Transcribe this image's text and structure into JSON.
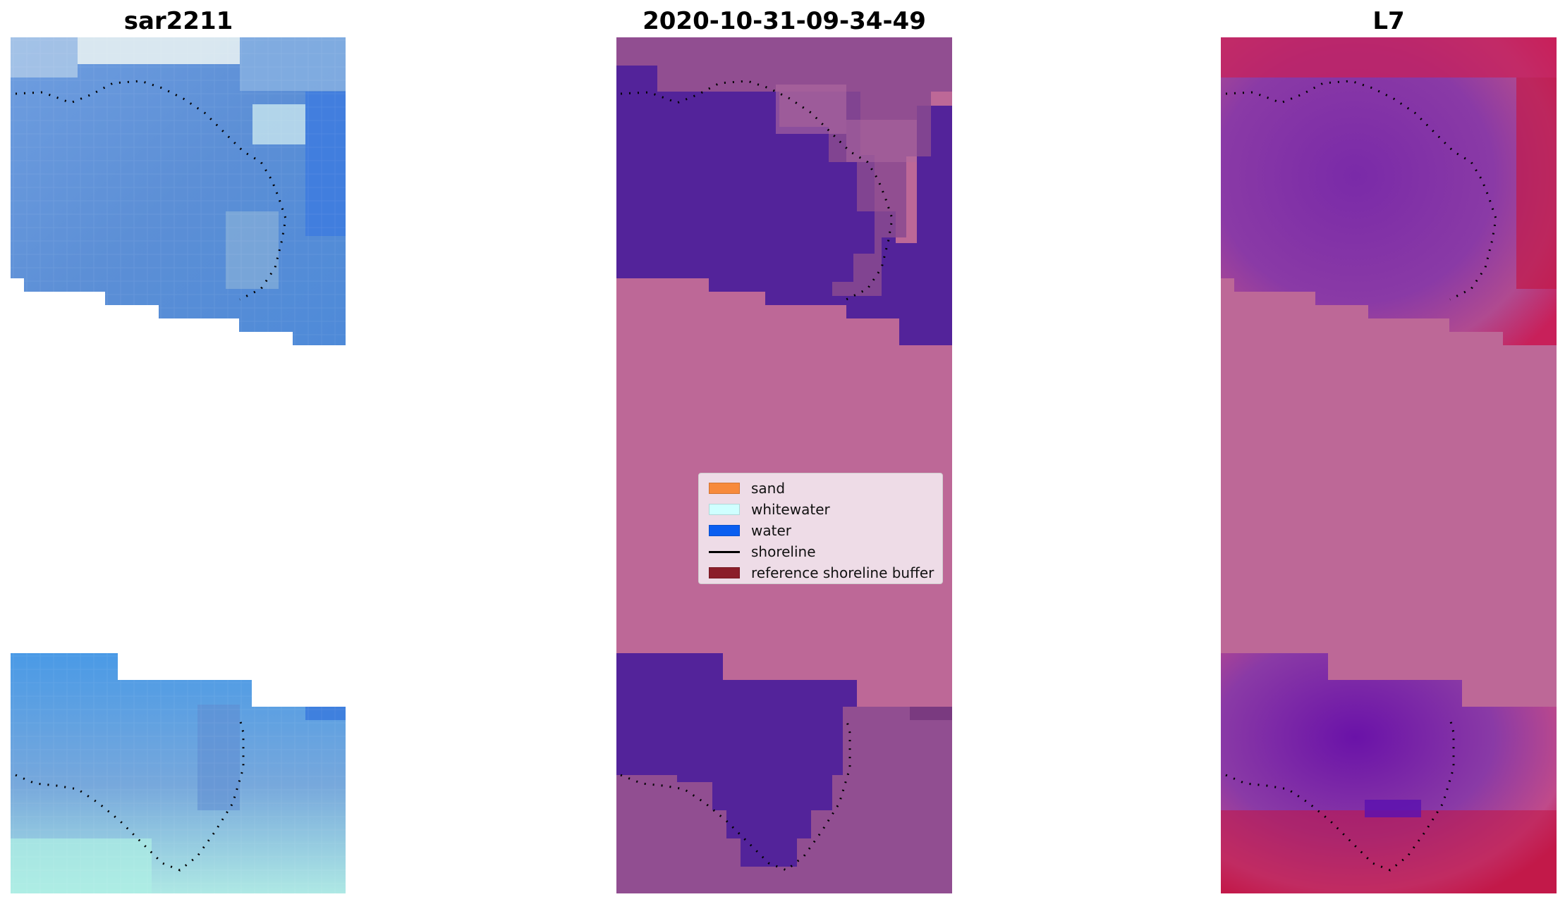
{
  "figure": {
    "panels": [
      {
        "title": "sar2211"
      },
      {
        "title": "2020-10-31-09-34-49"
      },
      {
        "title": "L7"
      }
    ]
  },
  "legend": {
    "items": [
      {
        "label": "sand",
        "color": "#f78a3c",
        "kind": "patch"
      },
      {
        "label": "whitewater",
        "color": "#cfffff",
        "kind": "patch"
      },
      {
        "label": "water",
        "color": "#0a5ef0",
        "kind": "patch"
      },
      {
        "label": "shoreline",
        "color": "#000000",
        "kind": "line"
      },
      {
        "label": "reference shoreline buffer",
        "color": "#8b1e2a",
        "kind": "patch"
      }
    ]
  },
  "colors": {
    "nodata_fill": "#bd6897",
    "water_class": "#53239a",
    "rgb_water": "#4f8ed8",
    "rgb_whitewater": "#c9ecef",
    "mndwi_water": "#6a1b9a",
    "mndwi_land": "#c2184a"
  }
}
